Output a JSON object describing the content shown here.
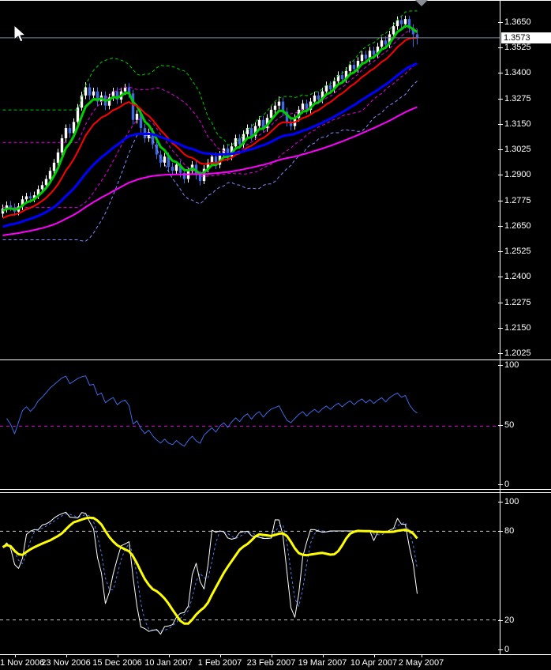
{
  "window": {
    "background": "#000000"
  },
  "price_axis": {
    "tick_labels": [
      "1.3650",
      "1.3525",
      "1.3400",
      "1.3275",
      "1.3150",
      "1.3025",
      "1.2900",
      "1.2775",
      "1.2650",
      "1.2525",
      "1.2400",
      "1.2275",
      "1.2150",
      "1.2025"
    ],
    "current_price_label": "1.3573"
  },
  "oscillator1_axis": {
    "labels": [
      "100",
      "50",
      "0"
    ]
  },
  "oscillator2_axis": {
    "labels": [
      "100",
      "80",
      "20",
      "0"
    ]
  },
  "time_axis": {
    "labels": [
      "1 Nov 2006",
      "23 Nov 2006",
      "15 Dec 2006",
      "10 Jan 2007",
      "1 Feb 2007",
      "23 Feb 2007",
      "19 Mar 2007",
      "10 Apr 2007",
      "2 May 2007"
    ]
  },
  "icons": {
    "cursor": "mouse-pointer-icon",
    "shift_marker": "chart-shift-triangle-icon"
  },
  "colors": {
    "background": "#000000",
    "axis_text": "#FFFFFF",
    "bull_candle": "#FFFFFF",
    "bear_candle": "#4169E1",
    "current_price_line": "#7A8C99",
    "badge_bg": "#FFFFFF",
    "badge_text": "#000000",
    "shift_marker": "#8C8C96"
  },
  "chart_data": [
    {
      "type": "candlestick",
      "panel": "price",
      "y_ticks": [
        1.365,
        1.3525,
        1.34,
        1.3275,
        1.315,
        1.3025,
        1.29,
        1.2775,
        1.265,
        1.2525,
        1.24,
        1.2275,
        1.215,
        1.2025
      ],
      "ylim": [
        1.2,
        1.372
      ],
      "grid": false,
      "x_tick_labels": [
        "1 Nov 2006",
        "23 Nov 2006",
        "15 Dec 2006",
        "10 Jan 2007",
        "1 Feb 2007",
        "23 Feb 2007",
        "19 Mar 2007",
        "10 Apr 2007",
        "2 May 2007"
      ],
      "x_tick_bar_index": [
        3,
        16,
        29,
        42,
        55,
        68,
        81,
        94,
        106
      ],
      "current_price": 1.3573,
      "candles": [
        [
          1.271,
          1.2755,
          1.269,
          1.2735
        ],
        [
          1.2735,
          1.277,
          1.2715,
          1.275
        ],
        [
          1.275,
          1.2772,
          1.2722,
          1.274
        ],
        [
          1.274,
          1.276,
          1.27,
          1.272
        ],
        [
          1.272,
          1.2762,
          1.2702,
          1.2745
        ],
        [
          1.2745,
          1.2798,
          1.2728,
          1.278
        ],
        [
          1.278,
          1.2812,
          1.276,
          1.2795
        ],
        [
          1.2795,
          1.2815,
          1.2763,
          1.2785
        ],
        [
          1.2785,
          1.2818,
          1.2766,
          1.28
        ],
        [
          1.28,
          1.2848,
          1.2782,
          1.283
        ],
        [
          1.283,
          1.2868,
          1.2812,
          1.285
        ],
        [
          1.285,
          1.2898,
          1.2832,
          1.288
        ],
        [
          1.288,
          1.2938,
          1.2862,
          1.292
        ],
        [
          1.292,
          1.2978,
          1.2902,
          1.296
        ],
        [
          1.296,
          1.3028,
          1.2945,
          1.301
        ],
        [
          1.301,
          1.3098,
          1.2995,
          1.308
        ],
        [
          1.308,
          1.3148,
          1.3062,
          1.313
        ],
        [
          1.313,
          1.315,
          1.3082,
          1.3105
        ],
        [
          1.3105,
          1.3178,
          1.3088,
          1.316
        ],
        [
          1.316,
          1.3248,
          1.3145,
          1.323
        ],
        [
          1.323,
          1.3308,
          1.3215,
          1.329
        ],
        [
          1.329,
          1.3355,
          1.3272,
          1.333
        ],
        [
          1.333,
          1.335,
          1.3268,
          1.329
        ],
        [
          1.329,
          1.3328,
          1.327,
          1.331
        ],
        [
          1.331,
          1.333,
          1.3238,
          1.326
        ],
        [
          1.326,
          1.3308,
          1.3242,
          1.329
        ],
        [
          1.329,
          1.331,
          1.3218,
          1.324
        ],
        [
          1.324,
          1.3298,
          1.3222,
          1.328
        ],
        [
          1.328,
          1.3328,
          1.3262,
          1.331
        ],
        [
          1.331,
          1.333,
          1.3248,
          1.327
        ],
        [
          1.327,
          1.3328,
          1.3252,
          1.331
        ],
        [
          1.331,
          1.3348,
          1.3292,
          1.333
        ],
        [
          1.333,
          1.335,
          1.3278,
          1.33
        ],
        [
          1.33,
          1.3318,
          1.3148,
          1.317
        ],
        [
          1.317,
          1.3218,
          1.3152,
          1.32
        ],
        [
          1.32,
          1.322,
          1.3108,
          1.313
        ],
        [
          1.313,
          1.315,
          1.3058,
          1.308
        ],
        [
          1.308,
          1.3128,
          1.3062,
          1.311
        ],
        [
          1.311,
          1.313,
          1.3028,
          1.305
        ],
        [
          1.305,
          1.307,
          1.2978,
          1.3
        ],
        [
          1.3,
          1.302,
          1.2938,
          1.296
        ],
        [
          1.296,
          1.3008,
          1.2942,
          1.299
        ],
        [
          1.299,
          1.301,
          1.2918,
          1.294
        ],
        [
          1.294,
          1.296,
          1.2898,
          1.292
        ],
        [
          1.292,
          1.2968,
          1.2902,
          1.295
        ],
        [
          1.295,
          1.297,
          1.2888,
          1.291
        ],
        [
          1.291,
          1.293,
          1.2858,
          1.288
        ],
        [
          1.288,
          1.2938,
          1.2862,
          1.292
        ],
        [
          1.292,
          1.2968,
          1.2902,
          1.295
        ],
        [
          1.295,
          1.297,
          1.2878,
          1.29
        ],
        [
          1.29,
          1.292,
          1.2848,
          1.287
        ],
        [
          1.287,
          1.2948,
          1.2855,
          1.293
        ],
        [
          1.293,
          1.2978,
          1.2912,
          1.296
        ],
        [
          1.296,
          1.3008,
          1.2942,
          1.299
        ],
        [
          1.299,
          1.301,
          1.2928,
          1.295
        ],
        [
          1.295,
          1.3018,
          1.2932,
          1.3
        ],
        [
          1.3,
          1.3048,
          1.2982,
          1.303
        ],
        [
          1.303,
          1.305,
          1.2968,
          1.299
        ],
        [
          1.299,
          1.3058,
          1.2972,
          1.304
        ],
        [
          1.304,
          1.3098,
          1.3022,
          1.308
        ],
        [
          1.308,
          1.31,
          1.3028,
          1.305
        ],
        [
          1.305,
          1.3118,
          1.3032,
          1.31
        ],
        [
          1.31,
          1.3148,
          1.3082,
          1.313
        ],
        [
          1.313,
          1.315,
          1.3068,
          1.309
        ],
        [
          1.309,
          1.3158,
          1.3072,
          1.314
        ],
        [
          1.314,
          1.3188,
          1.3122,
          1.317
        ],
        [
          1.317,
          1.319,
          1.3108,
          1.313
        ],
        [
          1.313,
          1.3198,
          1.3112,
          1.318
        ],
        [
          1.318,
          1.3238,
          1.3162,
          1.322
        ],
        [
          1.322,
          1.3258,
          1.3202,
          1.324
        ],
        [
          1.324,
          1.3285,
          1.3222,
          1.326
        ],
        [
          1.326,
          1.328,
          1.3188,
          1.321
        ],
        [
          1.321,
          1.323,
          1.3138,
          1.316
        ],
        [
          1.316,
          1.318,
          1.3118,
          1.314
        ],
        [
          1.314,
          1.3198,
          1.3122,
          1.318
        ],
        [
          1.318,
          1.3238,
          1.3162,
          1.322
        ],
        [
          1.322,
          1.3268,
          1.3202,
          1.325
        ],
        [
          1.325,
          1.327,
          1.3198,
          1.322
        ],
        [
          1.322,
          1.3278,
          1.3202,
          1.326
        ],
        [
          1.326,
          1.3308,
          1.3242,
          1.329
        ],
        [
          1.329,
          1.331,
          1.3248,
          1.327
        ],
        [
          1.327,
          1.3328,
          1.3252,
          1.331
        ],
        [
          1.331,
          1.3358,
          1.3292,
          1.334
        ],
        [
          1.334,
          1.336,
          1.3298,
          1.332
        ],
        [
          1.332,
          1.3378,
          1.3302,
          1.336
        ],
        [
          1.336,
          1.3408,
          1.3342,
          1.339
        ],
        [
          1.339,
          1.341,
          1.3348,
          1.337
        ],
        [
          1.337,
          1.3428,
          1.3352,
          1.341
        ],
        [
          1.341,
          1.3458,
          1.3392,
          1.344
        ],
        [
          1.344,
          1.346,
          1.3398,
          1.342
        ],
        [
          1.342,
          1.3478,
          1.3402,
          1.346
        ],
        [
          1.346,
          1.3508,
          1.3442,
          1.349
        ],
        [
          1.349,
          1.351,
          1.3448,
          1.347
        ],
        [
          1.347,
          1.3528,
          1.3452,
          1.351
        ],
        [
          1.351,
          1.353,
          1.3468,
          1.349
        ],
        [
          1.349,
          1.3548,
          1.3472,
          1.353
        ],
        [
          1.353,
          1.3578,
          1.3512,
          1.356
        ],
        [
          1.356,
          1.358,
          1.3518,
          1.354
        ],
        [
          1.354,
          1.3608,
          1.3522,
          1.359
        ],
        [
          1.359,
          1.3648,
          1.3572,
          1.363
        ],
        [
          1.363,
          1.3678,
          1.3612,
          1.366
        ],
        [
          1.366,
          1.368,
          1.3618,
          1.364
        ],
        [
          1.364,
          1.3682,
          1.3622,
          1.3665
        ],
        [
          1.3665,
          1.368,
          1.3598,
          1.362
        ],
        [
          1.362,
          1.364,
          1.3528,
          1.359
        ],
        [
          1.359,
          1.3615,
          1.354,
          1.3573
        ]
      ],
      "overlays": [
        {
          "name": "ma-fast",
          "type": "ema",
          "period": 5,
          "color": "#00CC00",
          "width": 3,
          "style": "solid",
          "start": 1.272
        },
        {
          "name": "ma-medium",
          "type": "ema",
          "period": 13,
          "color": "#FF0000",
          "width": 2,
          "style": "solid",
          "start": 1.268
        },
        {
          "name": "ma-slow",
          "type": "ema",
          "period": 34,
          "color": "#0000FF",
          "width": 3,
          "style": "solid",
          "start": 1.264
        },
        {
          "name": "ma-trend",
          "type": "ema",
          "period": 89,
          "color": "#FF00FF",
          "width": 2,
          "style": "solid",
          "start": 1.26
        },
        {
          "name": "bollinger-outer",
          "type": "bands",
          "period": 20,
          "deviation": 2,
          "upper_color": "#00CC00",
          "lower_color": "#8888FF",
          "width": 1,
          "style": "dashed"
        },
        {
          "name": "bollinger-inner",
          "type": "bands",
          "period": 20,
          "deviation": 1,
          "upper_color": "#E000E0",
          "lower_color": "#E000E0",
          "width": 1,
          "style": "dashed"
        }
      ]
    },
    {
      "type": "line",
      "panel": "oscillator1",
      "name": "RSI",
      "period": 14,
      "color": "#4169E1",
      "width": 1,
      "level": 50,
      "level_color": "#CC00CC",
      "y_ticks": [
        100,
        50,
        0
      ],
      "ylim": [
        0,
        100
      ],
      "grid": false
    },
    {
      "type": "stochastic",
      "panel": "oscillator2",
      "k_period": 5,
      "slowing": 3,
      "d_period": 3,
      "signal_period": 13,
      "k_color": "#FFFFFF",
      "d_color": "#4C7DEB",
      "signal_color": "#FFFF00",
      "signal_width": 3,
      "levels": [
        80,
        20
      ],
      "level_color": "#C8C8C8",
      "y_ticks": [
        100,
        80,
        20,
        0
      ],
      "ylim": [
        0,
        100
      ],
      "grid": false
    }
  ]
}
